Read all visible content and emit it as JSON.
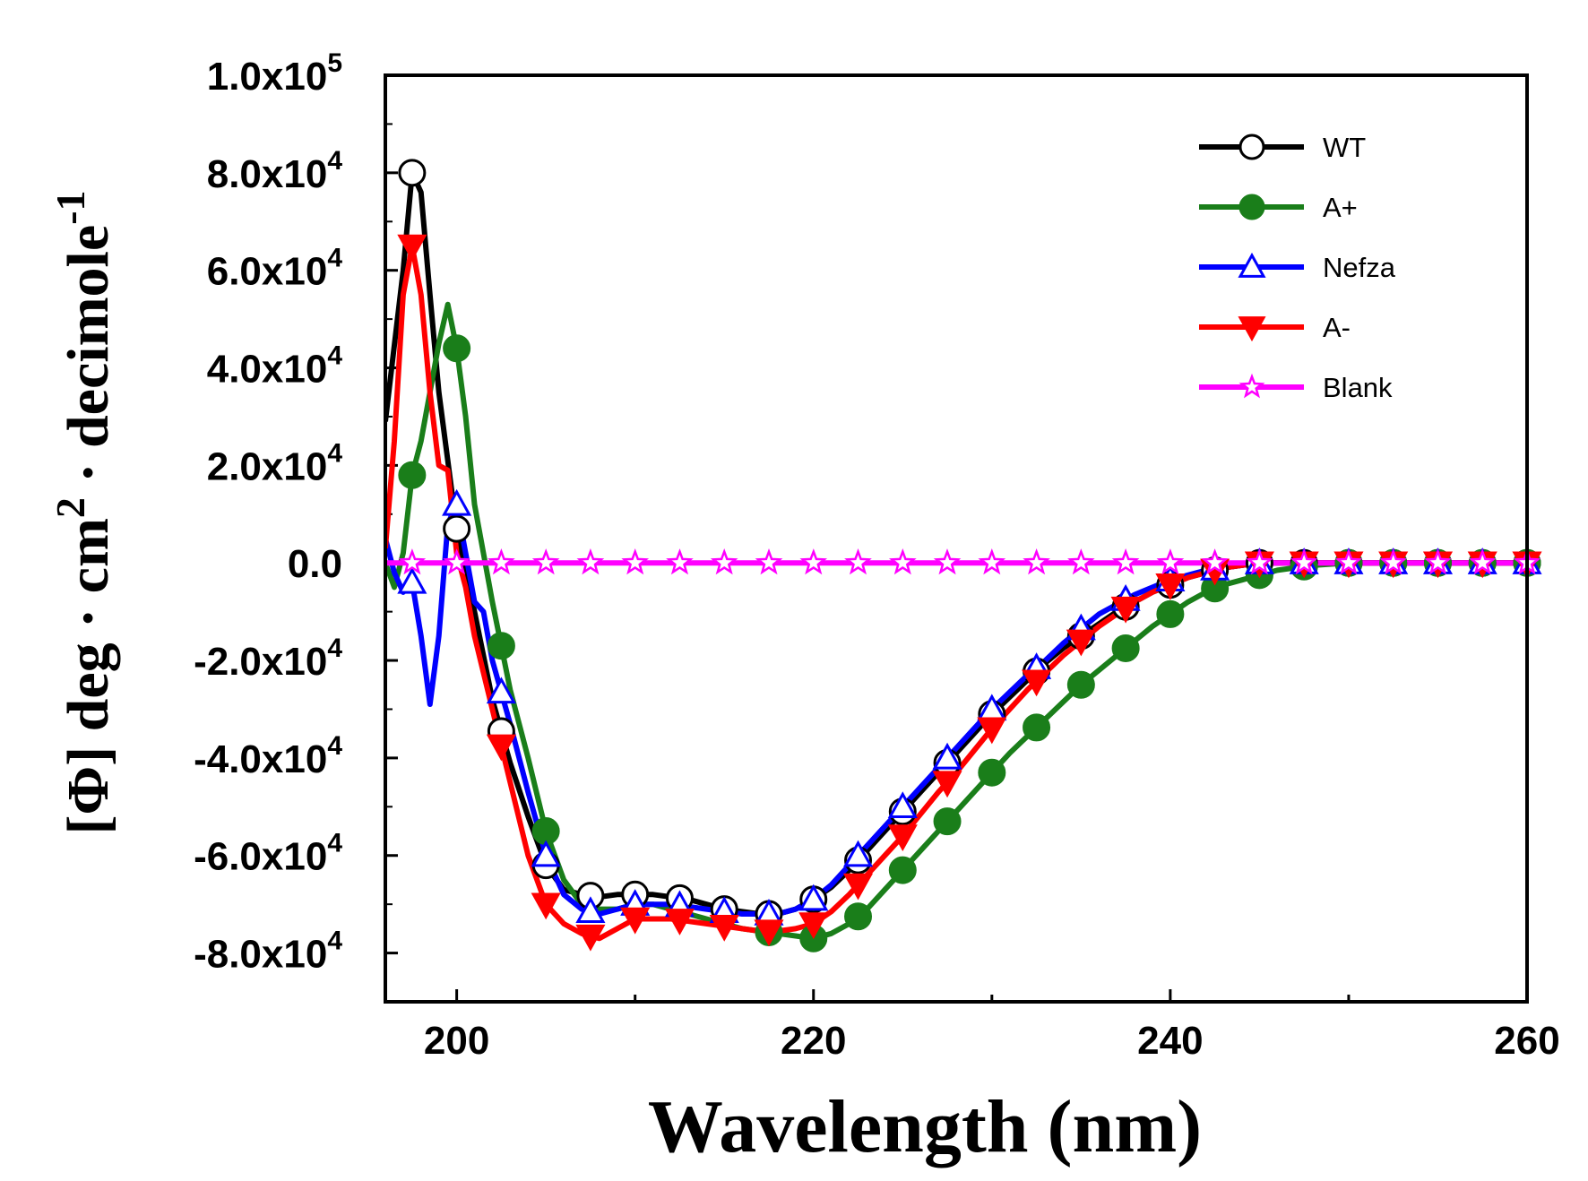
{
  "chart_data": {
    "type": "line",
    "xlabel": "Wavelength (nm)",
    "ylabel": {
      "prefix": "[Φ]  deg · cm",
      "sup1": "2",
      "middle": " · decimole",
      "sup2": "-1"
    },
    "xlim": [
      196,
      260
    ],
    "ylim": [
      -90000,
      100000
    ],
    "x_ticks": [
      {
        "value": 200,
        "label": "200"
      },
      {
        "value": 220,
        "label": "220"
      },
      {
        "value": 240,
        "label": "240"
      },
      {
        "value": 260,
        "label": "260"
      }
    ],
    "y_ticks": [
      {
        "value": 100000,
        "mantissa": "1.0x10",
        "exp": "5"
      },
      {
        "value": 80000,
        "mantissa": "8.0x10",
        "exp": "4"
      },
      {
        "value": 60000,
        "mantissa": "6.0x10",
        "exp": "4"
      },
      {
        "value": 40000,
        "mantissa": "4.0x10",
        "exp": "4"
      },
      {
        "value": 20000,
        "mantissa": "2.0x10",
        "exp": "4"
      },
      {
        "value": 0,
        "mantissa": "0.0",
        "exp": ""
      },
      {
        "value": -20000,
        "mantissa": "-2.0x10",
        "exp": "4"
      },
      {
        "value": -40000,
        "mantissa": "-4.0x10",
        "exp": "4"
      },
      {
        "value": -60000,
        "mantissa": "-6.0x10",
        "exp": "4"
      },
      {
        "value": -80000,
        "mantissa": "-8.0x10",
        "exp": "4"
      }
    ],
    "series": [
      {
        "name": "WT",
        "color": "#000000",
        "marker": "circle-open",
        "x": [
          196,
          197,
          197.5,
          198,
          198.5,
          199,
          200,
          201,
          202,
          203,
          204,
          205,
          206,
          207,
          208,
          209,
          210,
          211,
          212,
          213,
          214,
          215,
          216,
          217,
          218,
          219,
          220,
          221,
          222,
          223,
          224,
          225,
          226,
          227,
          228,
          229,
          230,
          231,
          232,
          233,
          234,
          235,
          236,
          237,
          238,
          239,
          240,
          241,
          242,
          243,
          244,
          245,
          246,
          247,
          248,
          250,
          252,
          254,
          256,
          258,
          260
        ],
        "y": [
          29000,
          60000,
          80000,
          76000,
          55000,
          35000,
          7000,
          -10000,
          -28000,
          -41000,
          -52000,
          -62000,
          -67000,
          -68000,
          -68500,
          -68000,
          -68000,
          -68000,
          -68500,
          -69000,
          -70000,
          -71000,
          -71500,
          -72000,
          -72000,
          -71000,
          -69000,
          -66500,
          -63000,
          -59000,
          -55000,
          -51000,
          -47000,
          -43000,
          -39000,
          -35000,
          -31000,
          -27500,
          -24000,
          -20500,
          -17500,
          -15000,
          -12500,
          -10000,
          -8000,
          -6000,
          -4500,
          -3000,
          -2000,
          -1000,
          -500,
          0,
          0,
          0,
          0,
          0,
          0,
          0,
          0,
          0,
          0
        ],
        "markers_at": [
          197.5,
          200,
          202.5,
          205,
          207.5,
          210,
          212.5,
          215,
          217.5,
          220,
          222.5,
          225,
          227.5,
          230,
          232.5,
          235,
          237.5,
          240,
          242.5,
          245,
          247.5,
          250,
          252.5,
          255,
          257.5,
          260
        ]
      },
      {
        "name": "A+",
        "color": "#1a7e1a",
        "marker": "circle-filled",
        "x": [
          196,
          196.5,
          197,
          197.5,
          198,
          198.5,
          199,
          199.5,
          200,
          200.5,
          201,
          202,
          203,
          204,
          205,
          206,
          207,
          208,
          209,
          210,
          211,
          212,
          213,
          214,
          215,
          216,
          217,
          218,
          219,
          220,
          221,
          222,
          223,
          224,
          225,
          226,
          227,
          228,
          229,
          230,
          231,
          232,
          233,
          234,
          235,
          236,
          237,
          238,
          239,
          240,
          241,
          242,
          243,
          244,
          245,
          246,
          247,
          248,
          250,
          252,
          254,
          256,
          258,
          260
        ],
        "y": [
          0,
          -5000,
          2000,
          18000,
          25000,
          35000,
          45000,
          53000,
          44000,
          30000,
          12000,
          -8000,
          -26000,
          -40000,
          -55000,
          -65000,
          -70000,
          -71000,
          -71000,
          -70000,
          -70000,
          -71000,
          -72000,
          -73000,
          -74000,
          -75000,
          -75500,
          -76000,
          -76500,
          -77000,
          -76000,
          -74000,
          -71000,
          -67000,
          -63000,
          -59000,
          -55000,
          -51000,
          -47000,
          -43000,
          -39000,
          -35500,
          -32000,
          -28500,
          -25000,
          -22000,
          -19000,
          -16000,
          -13000,
          -10500,
          -8000,
          -6000,
          -4500,
          -3500,
          -2500,
          -1500,
          -1000,
          -500,
          0,
          0,
          0,
          0,
          0,
          0
        ],
        "markers_at": [
          197.5,
          200,
          202.5,
          205,
          217.5,
          220,
          222.5,
          225,
          227.5,
          230,
          232.5,
          235,
          237.5,
          240,
          242.5,
          245,
          247.5,
          250,
          252.5,
          255,
          257.5,
          260
        ]
      },
      {
        "name": "Nefza",
        "color": "#0000ff",
        "marker": "triangle-open",
        "x": [
          196,
          196.5,
          197,
          197.5,
          198,
          198.5,
          199,
          199.5,
          200,
          200.5,
          201,
          201.5,
          202,
          203,
          204,
          205,
          206,
          207,
          208,
          209,
          210,
          211,
          212,
          213,
          214,
          215,
          216,
          217,
          218,
          219,
          220,
          221,
          222,
          223,
          224,
          225,
          226,
          227,
          228,
          229,
          230,
          231,
          232,
          233,
          234,
          235,
          236,
          237,
          238,
          239,
          240,
          241,
          242,
          243,
          244,
          245,
          246,
          247,
          248,
          250,
          252,
          254,
          256,
          258,
          260
        ],
        "y": [
          5000,
          -2000,
          -6000,
          -4000,
          -15000,
          -29000,
          -15000,
          8000,
          12000,
          2000,
          -8000,
          -10000,
          -20000,
          -33000,
          -47000,
          -60000,
          -68000,
          -71000,
          -72000,
          -71000,
          -70000,
          -70000,
          -70000,
          -70500,
          -71000,
          -71500,
          -72000,
          -72000,
          -72000,
          -71000,
          -69000,
          -66000,
          -62000,
          -58000,
          -54000,
          -50000,
          -46000,
          -42000,
          -38000,
          -34000,
          -30000,
          -26500,
          -23000,
          -20000,
          -16500,
          -13500,
          -10500,
          -8500,
          -6500,
          -5000,
          -3500,
          -2500,
          -1500,
          -1000,
          -500,
          0,
          0,
          0,
          0,
          0,
          0,
          0,
          0,
          0,
          0
        ],
        "markers_at": [
          197.5,
          200,
          202.5,
          205,
          207.5,
          210,
          212.5,
          215,
          217.5,
          220,
          222.5,
          225,
          227.5,
          230,
          232.5,
          235,
          237.5,
          240,
          242.5,
          245,
          247.5,
          250,
          252.5,
          255,
          257.5,
          260
        ]
      },
      {
        "name": "A-",
        "color": "#ff0000",
        "marker": "triangle-down-filled",
        "x": [
          196,
          196.5,
          197,
          197.5,
          198,
          198.5,
          199,
          199.5,
          200,
          200.5,
          201,
          202,
          203,
          204,
          205,
          206,
          207,
          208,
          209,
          210,
          211,
          212,
          213,
          214,
          215,
          216,
          217,
          218,
          219,
          220,
          221,
          222,
          223,
          224,
          225,
          226,
          227,
          228,
          229,
          230,
          231,
          232,
          233,
          234,
          235,
          236,
          237,
          238,
          239,
          240,
          241,
          242,
          243,
          244,
          245,
          246,
          247,
          248,
          250,
          252,
          254,
          256,
          258,
          260
        ],
        "y": [
          3000,
          25000,
          55000,
          65000,
          55000,
          35000,
          20000,
          19000,
          2000,
          -5000,
          -15000,
          -30000,
          -45000,
          -60000,
          -70000,
          -74000,
          -76000,
          -77000,
          -75000,
          -73000,
          -73000,
          -73000,
          -73500,
          -74000,
          -74500,
          -75000,
          -75500,
          -75500,
          -75000,
          -74000,
          -71500,
          -68000,
          -64000,
          -60000,
          -56000,
          -51500,
          -47000,
          -43000,
          -38500,
          -34000,
          -30000,
          -26000,
          -22500,
          -19000,
          -16000,
          -13000,
          -10500,
          -8000,
          -6000,
          -4500,
          -3000,
          -2000,
          -1000,
          -500,
          0,
          0,
          0,
          0,
          0,
          0,
          0,
          0,
          0,
          0
        ],
        "markers_at": [
          197.5,
          202.5,
          205,
          207.5,
          210,
          212.5,
          215,
          217.5,
          220,
          222.5,
          225,
          227.5,
          230,
          232.5,
          235,
          237.5,
          240,
          242.5,
          245,
          247.5,
          250,
          252.5,
          255,
          257.5,
          260
        ]
      },
      {
        "name": "Blank",
        "color": "#ff00ff",
        "marker": "star-open",
        "x": [
          196,
          260
        ],
        "y": [
          0,
          0
        ],
        "markers_at": [
          197.5,
          200,
          202.5,
          205,
          207.5,
          210,
          212.5,
          215,
          217.5,
          220,
          222.5,
          225,
          227.5,
          230,
          232.5,
          235,
          237.5,
          240,
          242.5,
          245,
          247.5,
          250,
          252.5,
          255,
          257.5,
          260
        ]
      }
    ],
    "legend": {
      "position": "top-right",
      "entries": [
        "WT",
        "A+",
        "Nefza",
        "A-",
        "Blank"
      ]
    }
  }
}
